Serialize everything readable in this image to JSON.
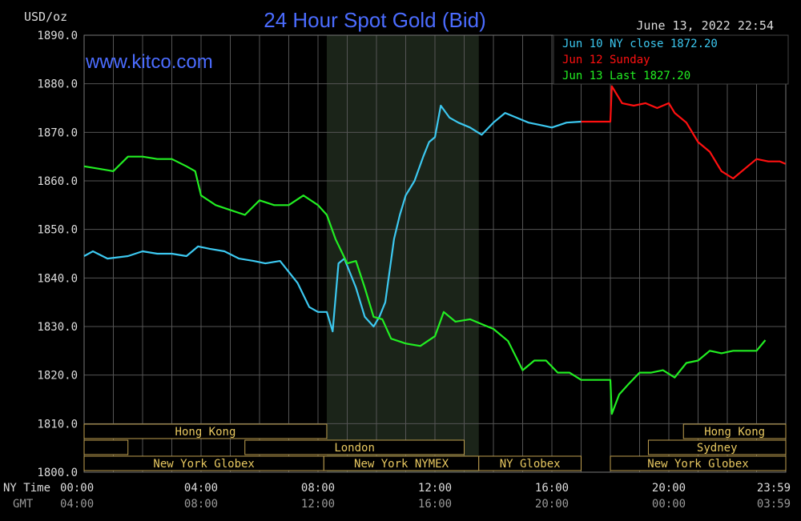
{
  "header": {
    "unit_label": "USD/oz",
    "title": "24 Hour Spot Gold (Bid)",
    "timestamp": "June 13, 2022 22:54",
    "watermark": "www.kitco.com"
  },
  "legend": [
    {
      "label": "Jun 10 NY close 1872.20",
      "color": "#3cc8f0"
    },
    {
      "label": "Jun 12 Sunday",
      "color": "#ff1010"
    },
    {
      "label": "Jun 13 Last 1827.20",
      "color": "#22ee22"
    }
  ],
  "axis_row_labels": {
    "ny": "NY Time",
    "gmt": "GMT"
  },
  "x_ticks_ny": [
    "00:00",
    "04:00",
    "08:00",
    "12:00",
    "16:00",
    "20:00",
    "23:59"
  ],
  "x_ticks_gmt": [
    "04:00",
    "08:00",
    "12:00",
    "16:00",
    "20:00",
    "00:00",
    "03:59"
  ],
  "y_ticks": [
    "1890.0",
    "1880.0",
    "1870.0",
    "1860.0",
    "1850.0",
    "1840.0",
    "1830.0",
    "1820.0",
    "1810.0",
    "1800.0"
  ],
  "sessions": [
    {
      "label": "Hong Kong",
      "row": 0,
      "start": 0,
      "end": 8.3
    },
    {
      "label": "Hong Kong",
      "row": 0,
      "start": 20.5,
      "end": 24
    },
    {
      "label": "",
      "row": 1,
      "start": 0,
      "end": 1.5
    },
    {
      "label": "London",
      "row": 1,
      "start": 5.5,
      "end": 13.0
    },
    {
      "label": "Sydney",
      "row": 1,
      "start": 19.3,
      "end": 24
    },
    {
      "label": "New York Globex",
      "row": 2,
      "start": 0,
      "end": 8.2
    },
    {
      "label": "New York NYMEX",
      "row": 2,
      "start": 8.2,
      "end": 13.5
    },
    {
      "label": "NY Globex",
      "row": 2,
      "start": 13.5,
      "end": 17.0
    },
    {
      "label": "New York Globex",
      "row": 2,
      "start": 18.0,
      "end": 24
    }
  ],
  "colors": {
    "background": "#000000",
    "grid": "#555555",
    "shade": "#1b2419",
    "title": "#4b6cff",
    "session_text": "#e8c860",
    "session_box": "#bfa050",
    "axis_text": "#dddddd",
    "gmt_text": "#999999"
  },
  "chart_data": {
    "type": "line",
    "title": "24 Hour Spot Gold (Bid)",
    "ylabel": "USD/oz",
    "xlabel": "NY Time",
    "ylim": [
      1800,
      1890
    ],
    "xlim_hours": [
      0,
      24
    ],
    "shaded_hours": [
      8.3,
      13.5
    ],
    "grid": true,
    "legend_position": "top-right",
    "series": [
      {
        "name": "Jun 10 NY close 1872.20",
        "color": "#3cc8f0",
        "x": [
          0,
          0.3,
          0.8,
          1.5,
          2.0,
          2.5,
          3.0,
          3.5,
          3.9,
          4.3,
          4.8,
          5.3,
          5.8,
          6.2,
          6.7,
          7.3,
          7.7,
          8.0,
          8.3,
          8.5,
          8.7,
          8.9,
          9.3,
          9.6,
          9.9,
          10.1,
          10.3,
          10.6,
          10.8,
          11.0,
          11.3,
          11.6,
          11.8,
          12.0,
          12.2,
          12.5,
          12.8,
          13.2,
          13.6,
          14.0,
          14.4,
          14.8,
          15.2,
          15.6,
          16.0,
          16.5,
          17.0
        ],
        "y": [
          1844.5,
          1845.5,
          1844.0,
          1844.5,
          1845.5,
          1845.0,
          1845.0,
          1844.5,
          1846.5,
          1846.0,
          1845.5,
          1844.0,
          1843.5,
          1843.0,
          1843.5,
          1839.0,
          1834.0,
          1833.0,
          1833.0,
          1829.0,
          1843.0,
          1844.0,
          1838.0,
          1832.0,
          1830.0,
          1832.0,
          1835.0,
          1848.0,
          1853.0,
          1857.0,
          1860.0,
          1865.0,
          1868.0,
          1869.0,
          1875.5,
          1873.0,
          1872.0,
          1871.0,
          1869.5,
          1872.0,
          1874.0,
          1873.0,
          1872.0,
          1871.5,
          1871.0,
          1872.0,
          1872.2
        ]
      },
      {
        "name": "Jun 12 Sunday",
        "color": "#ff1010",
        "x": [
          17.0,
          18.0,
          18.05,
          18.15,
          18.4,
          18.8,
          19.2,
          19.6,
          20.0,
          20.2,
          20.6,
          21.0,
          21.4,
          21.8,
          22.2,
          22.6,
          23.0,
          23.4,
          23.8,
          23.99
        ],
        "y": [
          1872.2,
          1872.2,
          1879.5,
          1878.5,
          1876.0,
          1875.5,
          1876.0,
          1875.0,
          1876.0,
          1874.0,
          1872.0,
          1868.0,
          1866.0,
          1862.0,
          1860.5,
          1862.5,
          1864.5,
          1864.0,
          1864.0,
          1863.5
        ]
      },
      {
        "name": "Jun 13 Last 1827.20",
        "color": "#22ee22",
        "x": [
          0,
          0.5,
          1.0,
          1.5,
          2.0,
          2.5,
          3.0,
          3.5,
          3.8,
          4.0,
          4.5,
          5.0,
          5.5,
          6.0,
          6.5,
          7.0,
          7.5,
          8.0,
          8.3,
          8.6,
          9.0,
          9.3,
          9.6,
          9.9,
          10.2,
          10.5,
          11.0,
          11.5,
          12.0,
          12.3,
          12.7,
          13.2,
          13.6,
          14.0,
          14.5,
          15.0,
          15.4,
          15.8,
          16.2,
          16.6,
          17.0,
          17.5,
          18.0,
          18.05,
          18.3,
          18.6,
          19.0,
          19.4,
          19.8,
          20.2,
          20.6,
          21.0,
          21.4,
          21.8,
          22.2,
          22.6,
          23.0,
          23.3
        ],
        "y": [
          1863.0,
          1862.5,
          1862.0,
          1865.0,
          1865.0,
          1864.5,
          1864.5,
          1863.0,
          1862.0,
          1857.0,
          1855.0,
          1854.0,
          1853.0,
          1856.0,
          1855.0,
          1855.0,
          1857.0,
          1855.0,
          1853.0,
          1848.0,
          1843.0,
          1843.5,
          1838.0,
          1832.0,
          1831.5,
          1827.5,
          1826.5,
          1826.0,
          1828.0,
          1833.0,
          1831.0,
          1831.5,
          1830.5,
          1829.5,
          1827.0,
          1821.0,
          1823.0,
          1823.0,
          1820.5,
          1820.5,
          1819.0,
          1819.0,
          1819.0,
          1812.0,
          1816.0,
          1818.0,
          1820.5,
          1820.5,
          1821.0,
          1819.5,
          1822.5,
          1823.0,
          1825.0,
          1824.5,
          1825.0,
          1825.0,
          1825.0,
          1827.2
        ]
      }
    ]
  }
}
